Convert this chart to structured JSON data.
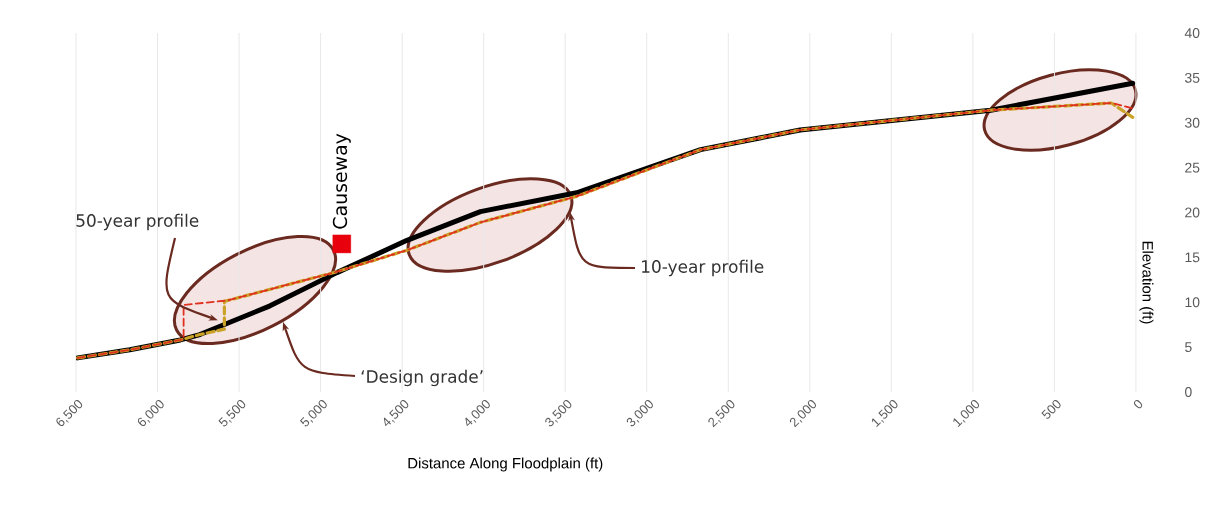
{
  "chart_data": {
    "type": "line",
    "xlabel": "Distance Along Floodplain (ft)",
    "ylabel": "Elevation (ft)",
    "xlim": [
      6500,
      0
    ],
    "ylim": [
      0,
      40
    ],
    "xticks": [
      {
        "value": 6500,
        "label": "6,500"
      },
      {
        "value": 6000,
        "label": "6,000"
      },
      {
        "value": 5500,
        "label": "5,500"
      },
      {
        "value": 5000,
        "label": "5,000"
      },
      {
        "value": 4500,
        "label": "4,500"
      },
      {
        "value": 4000,
        "label": "4,000"
      },
      {
        "value": 3500,
        "label": "3,500"
      },
      {
        "value": 3000,
        "label": "3,000"
      },
      {
        "value": 2500,
        "label": "2,500"
      },
      {
        "value": 2000,
        "label": "2,000"
      },
      {
        "value": 1500,
        "label": "1,500"
      },
      {
        "value": 1000,
        "label": "1,000"
      },
      500,
      0
    ],
    "yticks": [
      0,
      5,
      10,
      15,
      20,
      25,
      30,
      35,
      40
    ],
    "grid": "x",
    "annotations": [
      "‘Design grade’",
      "10-year profile",
      {
        "text": "50-year profile",
        "x": 5630,
        "y": 8.0
      },
      {
        "text": "Causeway",
        "x": 4870,
        "y": 16.5
      }
    ],
    "series": [
      {
        "color": "#000000",
        "line_style": "solid",
        "x": [
          6490,
          6170,
          5860,
          5740,
          5310,
          4900,
          4470,
          4020,
          3430,
          2670,
          2060,
          890,
          20
        ],
        "values": [
          3.8,
          4.7,
          5.8,
          6.4,
          9.6,
          13.3,
          16.9,
          20.1,
          22.2,
          27.0,
          29.2,
          31.4,
          34.4
        ]
      },
      {
        "color": "#c9a227",
        "line_style": "dashed",
        "x": [
          6490,
          6170,
          5860,
          5740,
          5590,
          5590,
          4900,
          4470,
          4020,
          3430,
          2670,
          2060,
          890,
          150,
          20
        ],
        "values": [
          3.8,
          4.7,
          5.8,
          6.4,
          7.0,
          10.1,
          13.4,
          15.8,
          18.9,
          21.8,
          27.0,
          29.2,
          31.4,
          32.2,
          30.6
        ]
      },
      {
        "color": "#e0301e",
        "line_style": "dashed",
        "x": [
          6490,
          6170,
          5860,
          5840,
          5840,
          5570,
          4900,
          4470,
          4020,
          3430,
          2670,
          2060,
          890,
          150,
          20
        ],
        "values": [
          3.8,
          4.7,
          5.8,
          5.9,
          9.7,
          10.2,
          13.4,
          15.8,
          18.9,
          21.8,
          27.0,
          29.2,
          31.4,
          32.2,
          31.6
        ]
      },
      {
        "type": "scatter",
        "marker": "square",
        "color": "#e8000c",
        "x": [
          4870
        ],
        "values": [
          16.5
        ]
      }
    ]
  }
}
